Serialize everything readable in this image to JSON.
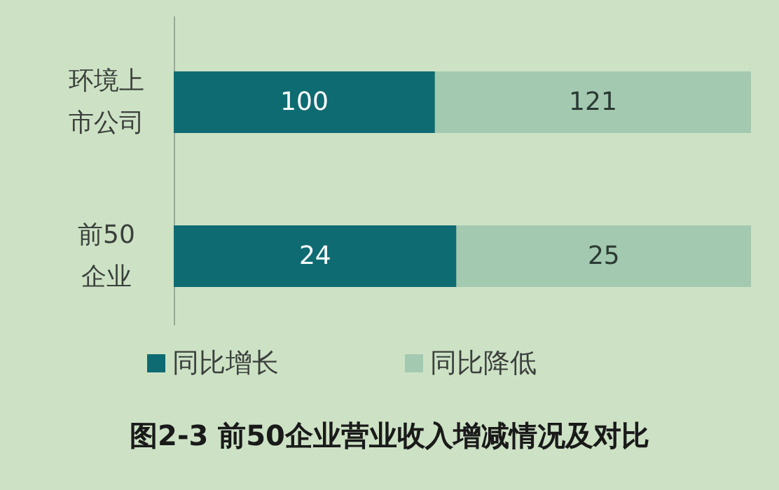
{
  "chart_data": [
    {
      "type": "bar",
      "orientation": "horizontal",
      "stacked": true,
      "categories": [
        "环境上市公司"
      ],
      "series": [
        {
          "color": "#0e6b72",
          "values": [
            100
          ]
        },
        {
          "color": "#a3c9b1",
          "values": [
            121
          ]
        }
      ],
      "data_labels": true
    },
    {
      "type": "bar",
      "orientation": "horizontal",
      "stacked": true,
      "title": "图2-3 前50企业营业收入增减情况及对比",
      "categories": [
        "前50企业"
      ],
      "series": [
        {
          "name": "同比增长",
          "color": "#0e6b72",
          "values": [
            24
          ]
        },
        {
          "name": "同比降低",
          "color": "#a3c9b1",
          "values": [
            25
          ]
        }
      ],
      "data_labels": true,
      "legend": "bottom"
    }
  ]
}
